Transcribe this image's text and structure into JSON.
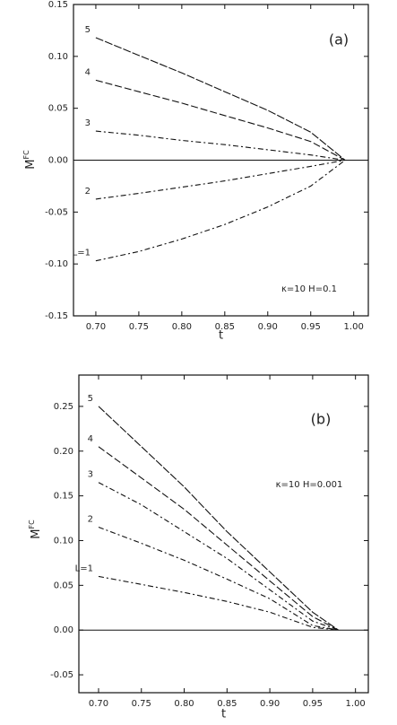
{
  "chart_data": [
    {
      "type": "line",
      "panel_label": "(a)",
      "annotation": "κ=10  H=0.1",
      "x_label": "t",
      "y_label": "M",
      "y_label_sup": "FC",
      "x": [
        0.7,
        0.75,
        0.8,
        0.85,
        0.9,
        0.95,
        0.99
      ],
      "series": [
        {
          "name": "L=1",
          "color": "#111111",
          "values": [
            -0.097,
            -0.088,
            -0.076,
            -0.062,
            -0.045,
            -0.025,
            0
          ]
        },
        {
          "name": "2",
          "color": "#111111",
          "values": [
            -0.0375,
            -0.032,
            -0.026,
            -0.02,
            -0.013,
            -0.006,
            0
          ]
        },
        {
          "name": "3",
          "color": "#111111",
          "values": [
            0.028,
            0.024,
            0.019,
            0.015,
            0.01,
            0.005,
            0
          ]
        },
        {
          "name": "4",
          "color": "#111111",
          "values": [
            0.077,
            0.066,
            0.055,
            0.043,
            0.031,
            0.018,
            0
          ]
        },
        {
          "name": "5",
          "color": "#111111",
          "values": [
            0.118,
            0.101,
            0.084,
            0.066,
            0.048,
            0.027,
            0
          ]
        }
      ],
      "xlim": [
        0.674,
        1.017
      ],
      "ylim": [
        -0.15,
        0.15
      ],
      "xticks": [
        {
          "value": 0.7,
          "label": "0.70"
        },
        0.75,
        {
          "value": 0.8,
          "label": "0.80"
        },
        0.85,
        {
          "value": 0.9,
          "label": "0.90"
        },
        0.95,
        {
          "value": 1,
          "label": "1.00"
        }
      ],
      "yticks": [
        -0.15,
        {
          "value": -0.1,
          "label": "-0.10"
        },
        -0.05,
        {
          "value": 0,
          "label": "0.00"
        },
        0.05,
        {
          "value": 0.1,
          "label": "0.10"
        },
        0.15
      ]
    },
    {
      "type": "line",
      "panel_label": "(b)",
      "annotation": "κ=10  H=0.001",
      "x_label": "t",
      "y_label": "M",
      "y_label_sup": "FC",
      "x": [
        0.7,
        0.75,
        0.8,
        0.85,
        0.9,
        0.95,
        0.98
      ],
      "series": [
        {
          "name": "L=1",
          "color": "#111111",
          "values": [
            0.06,
            0.051,
            0.042,
            0.032,
            0.02,
            0.003,
            0
          ]
        },
        {
          "name": "2",
          "color": "#111111",
          "values": [
            0.115,
            0.097,
            0.078,
            0.057,
            0.035,
            0.005,
            0
          ]
        },
        {
          "name": "3",
          "color": "#111111",
          "values": [
            0.165,
            0.14,
            0.11,
            0.08,
            0.045,
            0.01,
            0
          ]
        },
        {
          "name": "4",
          "color": "#111111",
          "values": [
            0.205,
            0.17,
            0.135,
            0.095,
            0.055,
            0.015,
            0
          ]
        },
        {
          "name": "5",
          "color": "#111111",
          "values": [
            0.25,
            0.205,
            0.16,
            0.11,
            0.065,
            0.02,
            0
          ]
        }
      ],
      "xlim": [
        0.677,
        1.015
      ],
      "ylim": [
        -0.07,
        0.285
      ],
      "xticks": [
        {
          "value": 0.7,
          "label": "0.70"
        },
        0.75,
        {
          "value": 0.8,
          "label": "0.80"
        },
        0.85,
        {
          "value": 0.9,
          "label": "0.90"
        },
        0.95,
        {
          "value": 1,
          "label": "1.00"
        }
      ],
      "yticks": [
        -0.05,
        {
          "value": 0,
          "label": "0.00"
        },
        0.05,
        {
          "value": 0.1,
          "label": "0.10"
        },
        0.15,
        {
          "value": 0.2,
          "label": "0.20"
        },
        0.25
      ]
    }
  ]
}
